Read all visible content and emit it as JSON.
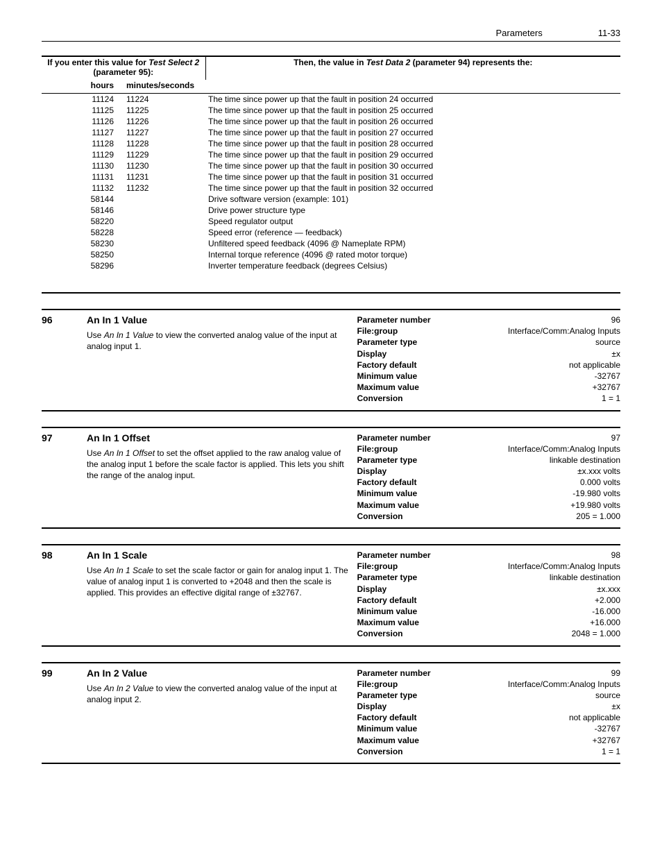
{
  "header": {
    "section": "Parameters",
    "page": "11-33"
  },
  "test_table": {
    "left_header_line1": "If you enter this value for",
    "left_header_line2_italic": "Test Select 2",
    "left_header_line2_rest": " (parameter 95):",
    "right_header_prefix": "Then, the value in ",
    "right_header_italic": "Test Data 2",
    "right_header_rest": " (parameter 94) represents the:",
    "sub_hours": "hours",
    "sub_minsec": "minutes/seconds",
    "rows": [
      {
        "h": "",
        "m": "11124",
        "s": "11224",
        "d": "The time since power up that the fault in position 24 occurred"
      },
      {
        "h": "",
        "m": "11125",
        "s": "11225",
        "d": "The time since power up that the fault in position 25 occurred"
      },
      {
        "h": "",
        "m": "11126",
        "s": "11226",
        "d": "The time since power up that the fault in position 26 occurred"
      },
      {
        "h": "",
        "m": "11127",
        "s": "11227",
        "d": "The time since power up that the fault in position 27 occurred"
      },
      {
        "h": "",
        "m": "11128",
        "s": "11228",
        "d": "The time since power up that the fault in position 28 occurred"
      },
      {
        "h": "",
        "m": "11129",
        "s": "11229",
        "d": "The time since power up that the fault in position 29 occurred"
      },
      {
        "h": "",
        "m": "11130",
        "s": "11230",
        "d": "The time since power up that the fault in position 30 occurred"
      },
      {
        "h": "",
        "m": "11131",
        "s": "11231",
        "d": "The time since power up that the fault in position 31 occurred"
      },
      {
        "h": "",
        "m": "11132",
        "s": "11232",
        "d": "The time since power up that the fault in position 32 occurred"
      },
      {
        "h": "58144",
        "m": "",
        "s": "",
        "d": "Drive software version (example: 101)"
      },
      {
        "h": "58146",
        "m": "",
        "s": "",
        "d": "Drive power structure type"
      },
      {
        "h": "58220",
        "m": "",
        "s": "",
        "d": "Speed regulator output"
      },
      {
        "h": "58228",
        "m": "",
        "s": "",
        "d": "Speed error (reference — feedback)"
      },
      {
        "h": "58230",
        "m": "",
        "s": "",
        "d": "Unfiltered speed feedback (4096 @ Nameplate RPM)"
      },
      {
        "h": "58250",
        "m": "",
        "s": "",
        "d": "Internal torque reference (4096 @ rated motor torque)"
      },
      {
        "h": "58296",
        "m": "",
        "s": "",
        "d": "Inverter temperature feedback (degrees Celsius)"
      }
    ]
  },
  "params": [
    {
      "num": "96",
      "title": "An In 1 Value",
      "desc_pre": "Use ",
      "desc_italic": "An In 1 Value",
      "desc_post": " to view the converted analog value of the input at analog input 1.",
      "kv": [
        [
          "Parameter number",
          "96"
        ],
        [
          "File:group",
          "Interface/Comm:Analog Inputs"
        ],
        [
          "Parameter type",
          "source"
        ],
        [
          "Display",
          "±x"
        ],
        [
          "Factory default",
          "not applicable"
        ],
        [
          "Minimum value",
          "-32767"
        ],
        [
          "Maximum value",
          "+32767"
        ],
        [
          "Conversion",
          "1 = 1"
        ]
      ]
    },
    {
      "num": "97",
      "title": "An In 1 Offset",
      "desc_pre": "Use ",
      "desc_italic": "An In 1 Offset",
      "desc_post": " to set the offset applied to the raw analog value of the analog input 1 before the scale factor is applied. This lets you shift the range of the analog input.",
      "kv": [
        [
          "Parameter number",
          "97"
        ],
        [
          "File:group",
          "Interface/Comm:Analog Inputs"
        ],
        [
          "Parameter type",
          "linkable destination"
        ],
        [
          "Display",
          "±x.xxx volts"
        ],
        [
          "Factory default",
          "0.000 volts"
        ],
        [
          "Minimum value",
          "-19.980 volts"
        ],
        [
          "Maximum value",
          "+19.980 volts"
        ],
        [
          "Conversion",
          "205 = 1.000"
        ]
      ]
    },
    {
      "num": "98",
      "title": "An In 1 Scale",
      "desc_pre": "Use ",
      "desc_italic": "An In 1 Scale",
      "desc_post": " to set the scale factor or gain for analog input 1. The value of analog input 1 is converted to +2048 and then the scale is applied. This provides an effective digital range of ±32767.",
      "kv": [
        [
          "Parameter number",
          "98"
        ],
        [
          "File:group",
          "Interface/Comm:Analog Inputs"
        ],
        [
          "Parameter type",
          "linkable destination"
        ],
        [
          "Display",
          "±x.xxx"
        ],
        [
          "Factory default",
          "+2.000"
        ],
        [
          "Minimum value",
          "-16.000"
        ],
        [
          "Maximum value",
          "+16.000"
        ],
        [
          "Conversion",
          "2048 = 1.000"
        ]
      ]
    },
    {
      "num": "99",
      "title": "An In 2 Value",
      "desc_pre": "Use ",
      "desc_italic": "An In 2 Value",
      "desc_post": " to view the converted analog value of the input at analog input 2.",
      "kv": [
        [
          "Parameter number",
          "99"
        ],
        [
          "File:group",
          "Interface/Comm:Analog Inputs"
        ],
        [
          "Parameter type",
          "source"
        ],
        [
          "Display",
          "±x"
        ],
        [
          "Factory default",
          "not applicable"
        ],
        [
          "Minimum value",
          "-32767"
        ],
        [
          "Maximum value",
          "+32767"
        ],
        [
          "Conversion",
          "1 = 1"
        ]
      ]
    }
  ]
}
